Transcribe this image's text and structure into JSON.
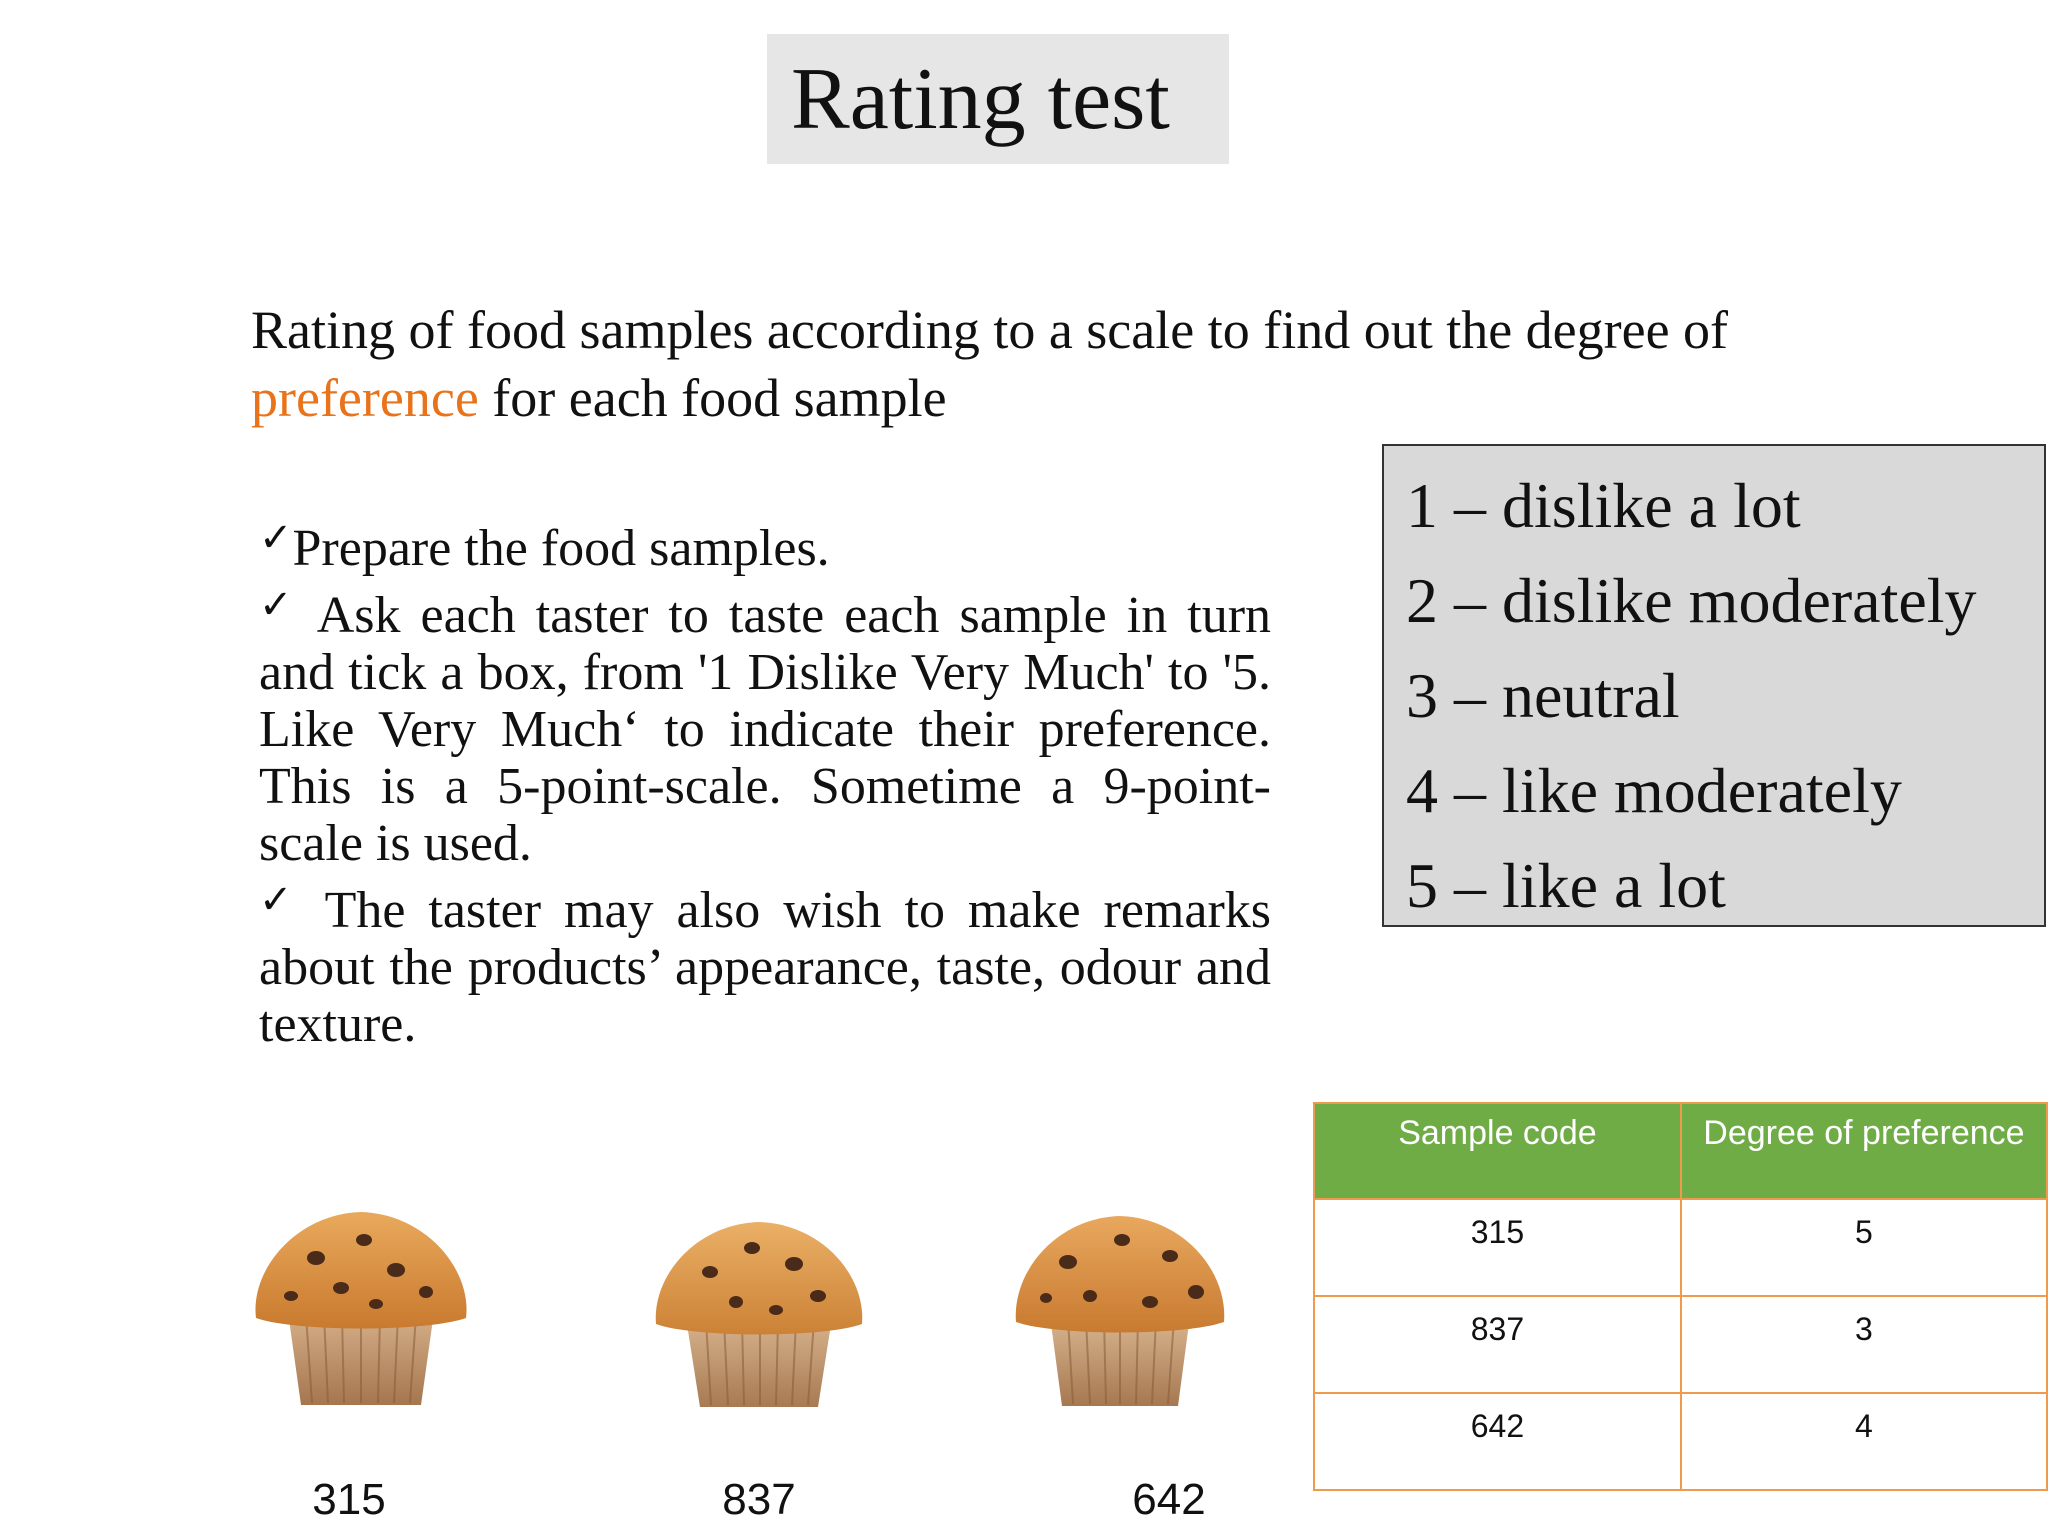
{
  "title": "Rating test",
  "intro": {
    "before": "Rating of food samples according to a scale to find out the degree of ",
    "highlight": "preference",
    "after": " for each food sample",
    "highlight_color": "#e8731a"
  },
  "bullets": [
    "Prepare the food samples.",
    " Ask each taster to taste each sample in turn and tick a box, from '1 Dislike Very Much' to '5. Like Very Much‘ to indicate their preference. This is a 5-point-scale. Sometime a 9-point-scale is used.",
    " The taster may also wish to make remarks about the products’ appearance, taste, odour and texture."
  ],
  "check_glyph": "✓",
  "scale": [
    "1 – dislike a lot",
    "2 – dislike moderately",
    "3 – neutral",
    "4 – like moderately",
    "5 – like a lot"
  ],
  "samples": [
    {
      "code": "315",
      "image": "muffin-icon"
    },
    {
      "code": "837",
      "image": "muffin-icon"
    },
    {
      "code": "642",
      "image": "muffin-icon"
    }
  ],
  "table": {
    "headers": [
      "Sample code",
      "Degree of preference"
    ],
    "rows": [
      [
        "315",
        "5"
      ],
      [
        "837",
        "3"
      ],
      [
        "642",
        "4"
      ]
    ],
    "header_color": "#6fac46",
    "border_color": "#ef9a4c"
  }
}
